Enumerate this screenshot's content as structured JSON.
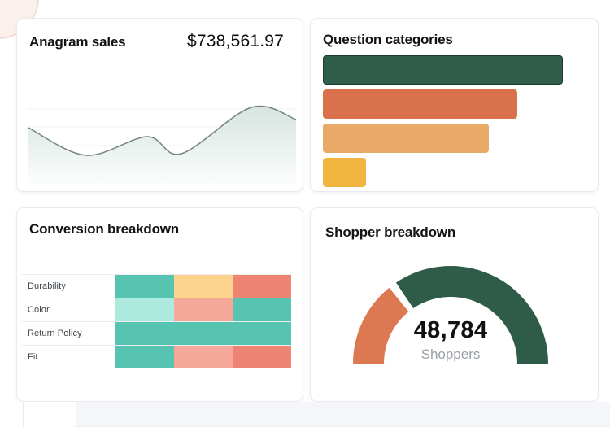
{
  "cards": {
    "sales": {
      "title": "Anagram sales",
      "value": "$738,561.97"
    },
    "categories": {
      "title": "Question categories"
    },
    "conversion": {
      "title": "Conversion breakdown"
    },
    "shoppers": {
      "title": "Shopper breakdown",
      "value": "48,784",
      "label": "Shoppers"
    }
  },
  "colors": {
    "dark_green": "#2E5C49",
    "terracotta": "#D9714D",
    "light_orange": "#E9A967",
    "yellow": "#F1B53F",
    "teal": "#57C3B1",
    "card_border": "#E9EAF0"
  },
  "chart_data": [
    {
      "id": "anagram-sales-trend",
      "type": "area",
      "title": "Anagram sales",
      "total_label": "$738,561.97",
      "axes_visible": false,
      "grid": "horizontal-faint",
      "gridlines_value_pct": [
        92,
        70,
        47,
        25,
        3
      ],
      "points": [
        {
          "x_pct": 0,
          "value_pct": 69
        },
        {
          "x_pct": 21.6,
          "value_pct": 35
        },
        {
          "x_pct": 44.4,
          "value_pct": 58
        },
        {
          "x_pct": 57.1,
          "value_pct": 37
        },
        {
          "x_pct": 83.3,
          "value_pct": 94
        },
        {
          "x_pct": 100,
          "value_pct": 79
        }
      ],
      "fill_top": "#d7e4de",
      "fill_bottom": "#fbfdfc",
      "stroke": "#76847e",
      "gridline_color": "#f0f2f1",
      "right_edge_line": true
    },
    {
      "id": "question-categories-bars",
      "type": "bar",
      "orientation": "horizontal",
      "title": "Question categories",
      "category_labels_visible": false,
      "values_pct_of_max": [
        100,
        81,
        69,
        18
      ],
      "max_bar_pct": 91.4,
      "colors": [
        "#305E4B",
        "#D9714D",
        "#E9A967",
        "#F1B53F"
      ],
      "first_bar_outlined": true,
      "outline_color": "#1C3E32"
    },
    {
      "id": "conversion-heatmap",
      "type": "heatmap",
      "title": "Conversion breakdown",
      "rows": [
        "Durability",
        "Color",
        "Return Policy",
        "Fit"
      ],
      "column_labels_visible": false,
      "cells": [
        [
          "teal",
          "yellow",
          "salmon"
        ],
        [
          "teal-light",
          "pink",
          "teal"
        ],
        [
          "teal",
          "teal",
          "teal"
        ],
        [
          "teal",
          "pink",
          "salmon"
        ]
      ],
      "palette": {
        "teal": "#57C3B1",
        "teal-light": "#ABEADC",
        "yellow": "#FDD48D",
        "salmon": "#EF8474",
        "pink": "#F6A99B"
      }
    },
    {
      "id": "shopper-gauge",
      "type": "gauge",
      "title": "Shopper breakdown",
      "center_value": "48,784",
      "center_label": "Shoppers",
      "outer_radius": 120,
      "thickness": 38,
      "segments": [
        {
          "name": "orange-segment",
          "color": "#DC7852",
          "start_deg": 180,
          "end_deg": 129
        },
        {
          "name": "green-segment",
          "color": "#2E5C49",
          "start_deg": 124,
          "end_deg": 0
        }
      ]
    }
  ]
}
